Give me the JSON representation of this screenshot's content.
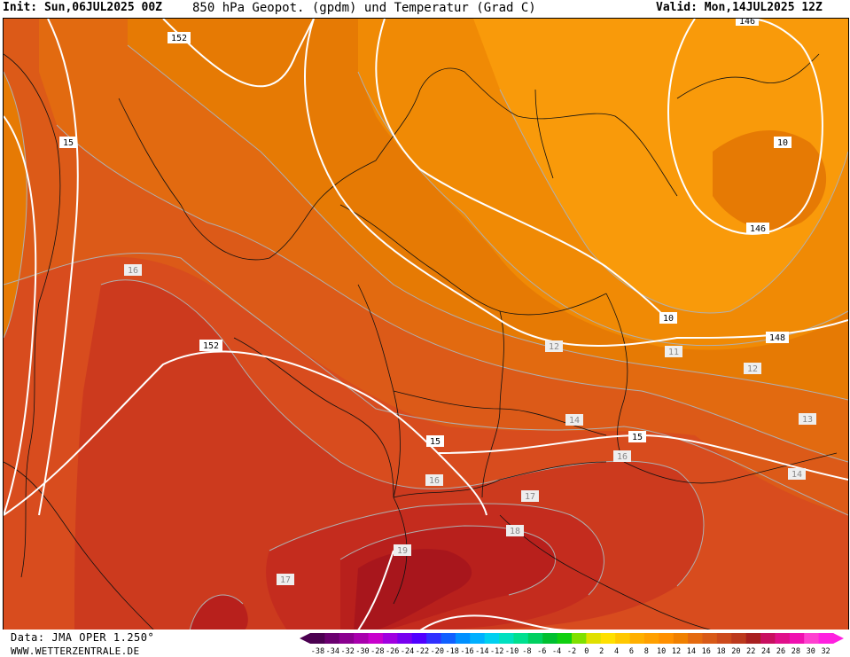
{
  "header": {
    "init": "Init: Sun,06JUL2025 00Z",
    "title": "850 hPa Geopot. (gpdm) und Temperatur (Grad C)",
    "valid": "Valid: Mon,14JUL2025 12Z"
  },
  "footer": {
    "source": "Data: JMA OPER 1.250°",
    "website": "WWW.WETTERZENTRALE.DE"
  },
  "legend": {
    "values": [
      "-38",
      "-34",
      "-32",
      "-30",
      "-28",
      "-26",
      "-24",
      "-22",
      "-20",
      "-18",
      "-16",
      "-14",
      "-12",
      "-10",
      "-8",
      "-6",
      "-4",
      "-2",
      "0",
      "2",
      "4",
      "6",
      "8",
      "10",
      "12",
      "14",
      "16",
      "18",
      "20",
      "22",
      "24",
      "26",
      "28",
      "30",
      "32"
    ],
    "colors": [
      "#4b0050",
      "#6a006f",
      "#8a008f",
      "#a800ad",
      "#c800cc",
      "#a000e0",
      "#7800f0",
      "#5000ff",
      "#3030ff",
      "#1060ff",
      "#0090ff",
      "#00b0ff",
      "#00d0f0",
      "#00e0c0",
      "#00e090",
      "#00d060",
      "#00c030",
      "#10d010",
      "#80e000",
      "#e0e000",
      "#ffe000",
      "#ffc800",
      "#ffb000",
      "#ffa000",
      "#ff9000",
      "#f08000",
      "#e46a10",
      "#d85a18",
      "#cc4a1c",
      "#bc3a1e",
      "#a82020",
      "#c81060",
      "#e0108a",
      "#f010b0",
      "#ff40d0",
      "#ff20e0"
    ]
  },
  "map": {
    "colors": {
      "t10": "#f99a0a",
      "t11": "#f08a05",
      "t12": "#e67a04",
      "t13": "#e26a10",
      "t14": "#dc5a18",
      "t15": "#d84c1e",
      "t16": "#cc3a1e",
      "t17": "#c42c1e",
      "t18": "#b8201c",
      "t19": "#a8161c"
    },
    "geopotential_labels": [
      "152",
      "146",
      "10",
      "146",
      "10",
      "148",
      "152",
      "15",
      "15"
    ],
    "temperature_labels": [
      "15",
      "16",
      "12",
      "11",
      "12",
      "13",
      "14",
      "14",
      "16",
      "16",
      "17",
      "18",
      "19",
      "17"
    ]
  }
}
